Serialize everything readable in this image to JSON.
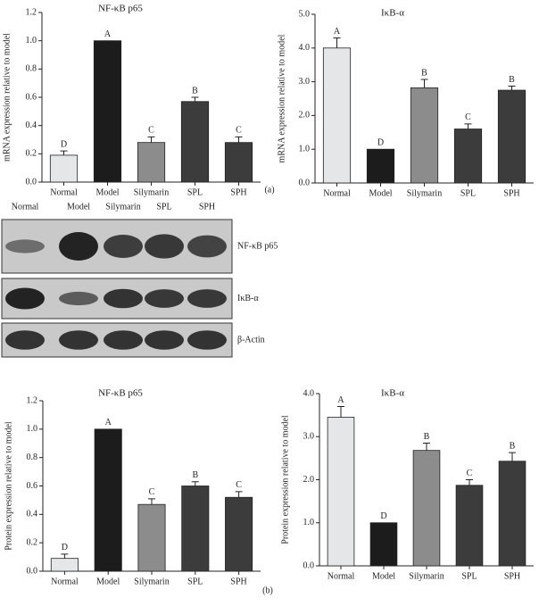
{
  "chart_data": [
    {
      "type": "bar",
      "title": "NF-κB p65",
      "y_label": "mRNA expression relative to model",
      "categories": [
        "Normal",
        "Model",
        "Silymarin",
        "SPL",
        "SPH"
      ],
      "values": [
        0.19,
        1.0,
        0.28,
        0.57,
        0.28
      ],
      "errors": [
        0.03,
        null,
        0.04,
        0.03,
        0.04
      ],
      "annotations": [
        "D",
        "A",
        "C",
        "B",
        "C"
      ],
      "colors": [
        "#e4e6e8",
        "#1c1c1c",
        "#8c8c8c",
        "#3c3c3c",
        "#3c3c3c"
      ],
      "ylim": [
        0,
        1.2
      ],
      "yticks": [
        {
          "value": 0,
          "label": "0.0"
        },
        0.2,
        0.4,
        0.6,
        0.8,
        {
          "value": 1,
          "label": "1.0"
        },
        1.2
      ]
    },
    {
      "type": "bar",
      "title": "IκB-α",
      "y_label": "mRNA expression relative to model",
      "categories": [
        "Normal",
        "Model",
        "Silymarin",
        "SPL",
        "SPH"
      ],
      "values": [
        4.0,
        1.0,
        2.82,
        1.6,
        2.75
      ],
      "errors": [
        0.3,
        null,
        0.25,
        0.15,
        0.12
      ],
      "annotations": [
        "A",
        "D",
        "B",
        "C",
        "B"
      ],
      "colors": [
        "#e4e6e8",
        "#1c1c1c",
        "#8c8c8c",
        "#3c3c3c",
        "#3c3c3c"
      ],
      "ylim": [
        0,
        5
      ],
      "yticks": [
        {
          "value": 0,
          "label": "0.0"
        },
        {
          "value": 1,
          "label": "1.0"
        },
        {
          "value": 2,
          "label": "2.0"
        },
        {
          "value": 3,
          "label": "3.0"
        },
        {
          "value": 4,
          "label": "4.0"
        },
        {
          "value": 5,
          "label": "5.0"
        }
      ]
    },
    {
      "type": "bar",
      "title": "NF-κB p65",
      "y_label": "Protein expression relative to model",
      "categories": [
        "Normal",
        "Model",
        "Silymarin",
        "SPL",
        "SPH"
      ],
      "values": [
        0.09,
        1.0,
        0.47,
        0.6,
        0.52
      ],
      "errors": [
        0.03,
        null,
        0.04,
        0.03,
        0.04
      ],
      "annotations": [
        "D",
        "A",
        "C",
        "B",
        "C"
      ],
      "colors": [
        "#e4e6e8",
        "#1c1c1c",
        "#8c8c8c",
        "#3c3c3c",
        "#3c3c3c"
      ],
      "ylim": [
        0,
        1.2
      ],
      "yticks": [
        {
          "value": 0,
          "label": "0.0"
        },
        0.2,
        0.4,
        0.6,
        0.8,
        {
          "value": 1,
          "label": "1.0"
        },
        1.2
      ]
    },
    {
      "type": "bar",
      "title": "IκB-α",
      "y_label": "Protein expression relative to model",
      "categories": [
        "Normal",
        "Model",
        "Silymarin",
        "SPL",
        "SPH"
      ],
      "values": [
        3.45,
        1.0,
        2.68,
        1.87,
        2.43
      ],
      "errors": [
        0.25,
        null,
        0.17,
        0.13,
        0.2
      ],
      "annotations": [
        "A",
        "D",
        "B",
        "C",
        "B"
      ],
      "colors": [
        "#e4e6e8",
        "#1c1c1c",
        "#8c8c8c",
        "#3c3c3c",
        "#3c3c3c"
      ],
      "ylim": [
        0,
        4
      ],
      "yticks": [
        {
          "value": 0,
          "label": "0.0"
        },
        {
          "value": 1,
          "label": "1.0"
        },
        {
          "value": 2,
          "label": "2.0"
        },
        {
          "value": 3,
          "label": "3.0"
        },
        {
          "value": 4,
          "label": "4.0"
        }
      ]
    }
  ],
  "blot": {
    "lanes": [
      "Normal",
      "Model",
      "Silymarin",
      "SPL",
      "SPH"
    ],
    "rows": [
      "NF-κB p65",
      "IκB-α",
      "β-Actin"
    ]
  },
  "panel_labels": [
    "(a)",
    "(b)"
  ]
}
